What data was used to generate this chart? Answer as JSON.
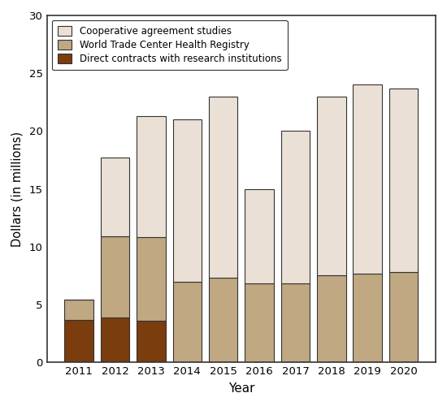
{
  "years": [
    2011,
    2012,
    2013,
    2014,
    2015,
    2016,
    2017,
    2018,
    2019,
    2020
  ],
  "direct_contracts": [
    3.7,
    3.9,
    3.6,
    0.0,
    0.0,
    0.0,
    0.0,
    0.0,
    0.0,
    0.0
  ],
  "registry": [
    1.7,
    7.0,
    7.2,
    7.0,
    7.3,
    6.8,
    6.8,
    7.5,
    7.7,
    7.8
  ],
  "cooperative": [
    0.0,
    6.8,
    10.5,
    14.0,
    15.7,
    8.2,
    13.2,
    15.5,
    16.3,
    15.9
  ],
  "color_direct": "#7B3C0E",
  "color_registry": "#BFA882",
  "color_cooperative": "#EAE0D5",
  "color_edge": "#333333",
  "ylim": [
    0,
    30
  ],
  "yticks": [
    0,
    5,
    10,
    15,
    20,
    25,
    30
  ],
  "xlabel": "Year",
  "ylabel": "Dollars (in millions)",
  "legend_labels": [
    "Cooperative agreement studies",
    "World Trade Center Health Registry",
    "Direct contracts with research institutions"
  ],
  "legend_colors": [
    "#EAE0D5",
    "#BFA882",
    "#7B3C0E"
  ],
  "bar_width": 0.8
}
